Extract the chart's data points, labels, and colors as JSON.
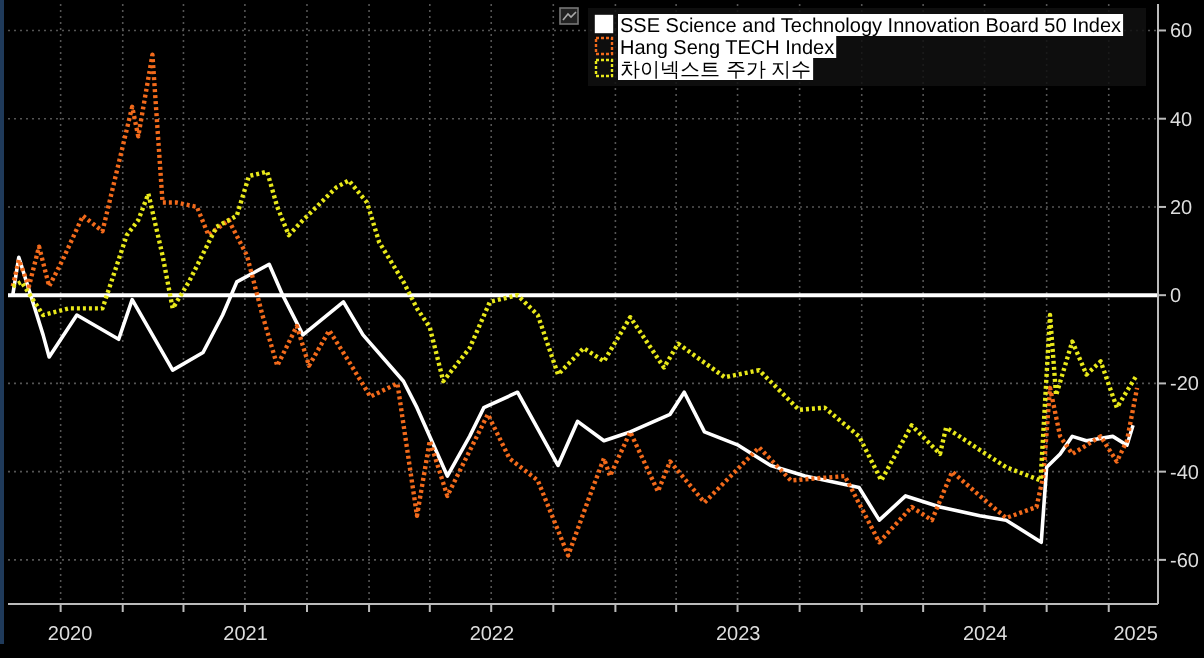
{
  "chart_data": {
    "type": "line",
    "xlim": [
      "2020-07-15",
      "2025-03-15"
    ],
    "ylim": [
      -70,
      66
    ],
    "xticks": [
      {
        "value": "2020-10-15",
        "label": "2020"
      },
      {
        "value": "2021-07-02",
        "label": "2021"
      },
      {
        "value": "2022-07-02",
        "label": "2022"
      },
      {
        "value": "2023-07-02",
        "label": "2023"
      },
      {
        "value": "2024-07-02",
        "label": "2024"
      },
      {
        "value": "2025-02-10",
        "label": "2025"
      },
      {
        "value": "2020-10-01",
        "label": null
      },
      {
        "value": "2021-01-01",
        "label": null
      },
      {
        "value": "2021-04-01",
        "label": null
      },
      {
        "value": "2021-07-01",
        "label": null
      },
      {
        "value": "2021-10-01",
        "label": null
      },
      {
        "value": "2022-01-01",
        "label": null
      },
      {
        "value": "2022-04-01",
        "label": null
      },
      {
        "value": "2022-07-01",
        "label": null
      },
      {
        "value": "2022-10-01",
        "label": null
      },
      {
        "value": "2023-01-01",
        "label": null
      },
      {
        "value": "2023-04-01",
        "label": null
      },
      {
        "value": "2023-07-01",
        "label": null
      },
      {
        "value": "2023-10-01",
        "label": null
      },
      {
        "value": "2024-01-01",
        "label": null
      },
      {
        "value": "2024-04-01",
        "label": null
      },
      {
        "value": "2024-07-01",
        "label": null
      },
      {
        "value": "2024-10-01",
        "label": null
      },
      {
        "value": "2025-01-01",
        "label": null
      }
    ],
    "yticks": [
      -60,
      -40,
      -20,
      0,
      20,
      40,
      60
    ],
    "grid": true,
    "legend": "top right",
    "ref_lines": [
      {
        "axis": "y",
        "value": 0,
        "color": "#ffffff"
      }
    ],
    "series": [
      {
        "name": "SSE Science and Technology Innovation Board 50 Index",
        "color": "#ffffff",
        "line_style": "solid",
        "x": [
          "2020-07-22",
          "2020-07-31",
          "2020-09-05",
          "2020-09-14",
          "2020-10-25",
          "2020-12-26",
          "2021-01-15",
          "2021-03-16",
          "2021-04-30",
          "2021-05-29",
          "2021-06-19",
          "2021-08-06",
          "2021-08-26",
          "2021-09-25",
          "2021-11-24",
          "2021-12-23",
          "2022-02-21",
          "2022-03-13",
          "2022-04-27",
          "2022-05-30",
          "2022-06-20",
          "2022-08-09",
          "2022-10-08",
          "2022-11-06",
          "2022-12-15",
          "2023-01-23",
          "2023-03-23",
          "2023-04-13",
          "2023-05-13",
          "2023-07-02",
          "2023-08-19",
          "2023-10-09",
          "2023-12-28",
          "2024-01-27",
          "2024-03-06",
          "2024-04-26",
          "2024-06-24",
          "2024-08-02",
          "2024-09-23",
          "2024-10-01",
          "2024-10-21",
          "2024-11-08",
          "2024-11-29",
          "2025-01-07",
          "2025-01-28",
          "2025-02-06"
        ],
        "values": [
          0,
          8.6,
          -9,
          -14,
          -4.5,
          -10,
          -1,
          -17,
          -13,
          -4.5,
          3,
          7,
          0,
          -9,
          -1.5,
          -9,
          -19.5,
          -25.5,
          -41,
          -32,
          -25.5,
          -22,
          -38.6,
          -28.6,
          -33,
          -31,
          -27,
          -22,
          -31,
          -34,
          -38.6,
          -41,
          -43.6,
          -51,
          -45.5,
          -48,
          -50,
          -51,
          -56,
          -39,
          -36,
          -32,
          -33,
          -32,
          -34,
          -29.5
        ]
      },
      {
        "name": "Hang Seng TECH Index",
        "color": "#f26a1b",
        "line_style": "dotted",
        "x": [
          "2020-07-22",
          "2020-07-31",
          "2020-08-15",
          "2020-08-30",
          "2020-09-14",
          "2020-10-04",
          "2020-11-03",
          "2020-12-02",
          "2021-01-15",
          "2021-01-24",
          "2021-02-14",
          "2021-03-01",
          "2021-03-22",
          "2021-04-21",
          "2021-05-08",
          "2021-06-07",
          "2021-07-04",
          "2021-07-27",
          "2021-08-18",
          "2021-09-16",
          "2021-10-04",
          "2021-11-03",
          "2021-12-02",
          "2022-01-03",
          "2022-02-12",
          "2022-03-13",
          "2022-04-01",
          "2022-04-27",
          "2022-06-26",
          "2022-07-28",
          "2022-09-08",
          "2022-10-23",
          "2022-11-24",
          "2022-12-15",
          "2022-12-24",
          "2023-01-23",
          "2023-03-05",
          "2023-03-23",
          "2023-05-13",
          "2023-08-02",
          "2023-09-18",
          "2023-12-07",
          "2024-01-27",
          "2024-03-15",
          "2024-04-14",
          "2024-05-14",
          "2024-06-24",
          "2024-08-02",
          "2024-09-16",
          "2024-09-26",
          "2024-10-06",
          "2024-10-21",
          "2024-11-08",
          "2024-12-20",
          "2025-01-13",
          "2025-01-28",
          "2025-02-12"
        ],
        "values": [
          2,
          8,
          2,
          11,
          2,
          8,
          18,
          14.5,
          42.7,
          36,
          54.5,
          21,
          21,
          20,
          13.6,
          17,
          9,
          -4.5,
          -16,
          -7,
          -16,
          -8,
          -15,
          -23,
          -20,
          -50,
          -33,
          -45.5,
          -27,
          -37,
          -42,
          -59,
          -45.5,
          -37,
          -41,
          -31,
          -44.5,
          -37.7,
          -47,
          -34.5,
          -42,
          -41,
          -56,
          -48,
          -51,
          -40,
          -45.5,
          -50.5,
          -48,
          -41,
          -21,
          -32,
          -36,
          -32,
          -37.7,
          -33,
          -21
        ]
      },
      {
        "name": "차이넥스트 주가 지수",
        "color": "#e8e81a",
        "line_style": "dotted",
        "x": [
          "2020-07-22",
          "2020-08-04",
          "2020-09-05",
          "2020-10-13",
          "2020-12-02",
          "2021-01-07",
          "2021-01-24",
          "2021-02-08",
          "2021-03-01",
          "2021-03-16",
          "2021-04-09",
          "2021-05-20",
          "2021-06-19",
          "2021-07-07",
          "2021-08-03",
          "2021-08-18",
          "2021-09-04",
          "2021-09-25",
          "2021-11-14",
          "2021-12-02",
          "2021-12-29",
          "2022-01-16",
          "2022-02-21",
          "2022-03-13",
          "2022-04-01",
          "2022-04-21",
          "2022-05-30",
          "2022-06-29",
          "2022-08-09",
          "2022-09-08",
          "2022-10-08",
          "2022-11-15",
          "2022-12-15",
          "2023-01-23",
          "2023-03-14",
          "2023-04-04",
          "2023-06-12",
          "2023-08-02",
          "2023-09-30",
          "2023-11-07",
          "2023-12-28",
          "2024-01-30",
          "2024-03-15",
          "2024-04-26",
          "2024-05-05",
          "2024-07-03",
          "2024-08-02",
          "2024-09-22",
          "2024-10-06",
          "2024-10-15",
          "2024-11-08",
          "2024-11-29",
          "2024-12-20",
          "2025-01-13",
          "2025-02-12"
        ],
        "values": [
          2,
          3,
          -4.5,
          -3,
          -3,
          13.6,
          17,
          23,
          9,
          -3,
          3,
          15.5,
          18,
          27,
          28,
          20,
          13.6,
          17,
          24.5,
          26,
          21,
          12,
          3,
          -3,
          -7.3,
          -19.5,
          -12,
          -1.5,
          0,
          -4.5,
          -18,
          -12,
          -15,
          -5,
          -16.4,
          -11,
          -18.6,
          -17,
          -26,
          -25.5,
          -32,
          -42,
          -29.5,
          -36,
          -30,
          -36,
          -39,
          -42,
          -4.5,
          -22.7,
          -10.5,
          -18,
          -15,
          -25.5,
          -18
        ]
      }
    ]
  }
}
